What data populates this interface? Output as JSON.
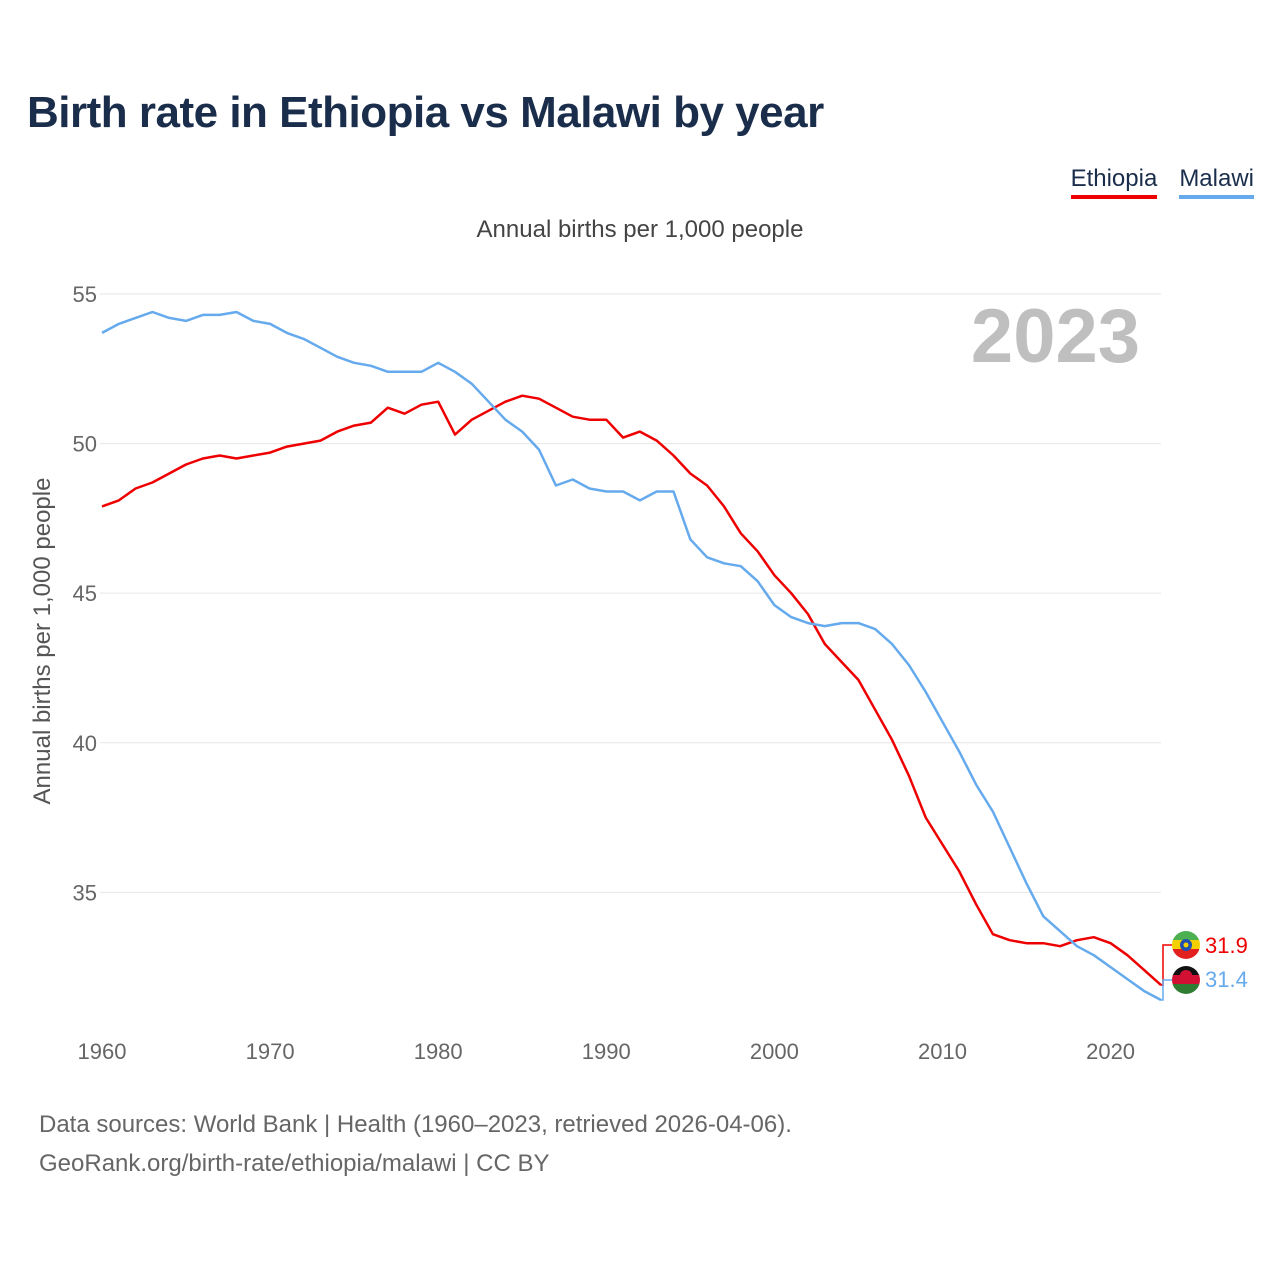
{
  "title": "Birth rate in Ethiopia vs Malawi by year",
  "subtitle": "Annual births per 1,000 people",
  "legend": [
    {
      "label": "Ethiopia",
      "color": "#ee0000"
    },
    {
      "label": "Malawi",
      "color": "#66aaee"
    }
  ],
  "year_display": "2023",
  "source_line1": "Data sources: World Bank | Health (1960–2023, retrieved 2026-04-06).",
  "source_line2": "GeoRank.org/birth-rate/ethiopia/malawi | CC BY",
  "end_labels": {
    "ethiopia": "31.9",
    "malawi": "31.4"
  },
  "chart_data": {
    "type": "line",
    "title": "Birth rate in Ethiopia vs Malawi by year",
    "subtitle": "Annual births per 1,000 people",
    "xlabel": "",
    "ylabel": "Annual births per 1,000 people",
    "xlim": [
      1960,
      2023
    ],
    "ylim": [
      31,
      55
    ],
    "x_ticks": [
      "1960",
      "1970",
      "1980",
      "1990",
      "2000",
      "2010",
      "2020"
    ],
    "y_ticks": [
      "35",
      "40",
      "45",
      "50",
      "55"
    ],
    "x": [
      1960,
      1961,
      1962,
      1963,
      1964,
      1965,
      1966,
      1967,
      1968,
      1969,
      1970,
      1971,
      1972,
      1973,
      1974,
      1975,
      1976,
      1977,
      1978,
      1979,
      1980,
      1981,
      1982,
      1983,
      1984,
      1985,
      1986,
      1987,
      1988,
      1989,
      1990,
      1991,
      1992,
      1993,
      1994,
      1995,
      1996,
      1997,
      1998,
      1999,
      2000,
      2001,
      2002,
      2003,
      2004,
      2005,
      2006,
      2007,
      2008,
      2009,
      2010,
      2011,
      2012,
      2013,
      2014,
      2015,
      2016,
      2017,
      2018,
      2019,
      2020,
      2021,
      2022,
      2023
    ],
    "series": [
      {
        "name": "Ethiopia",
        "color": "#ee0000",
        "values": [
          47.9,
          48.1,
          48.5,
          48.7,
          49.0,
          49.3,
          49.5,
          49.6,
          49.5,
          49.6,
          49.7,
          49.9,
          50.0,
          50.1,
          50.4,
          50.6,
          50.7,
          51.2,
          51.0,
          51.3,
          51.4,
          50.3,
          50.8,
          51.1,
          51.4,
          51.6,
          51.5,
          51.2,
          50.9,
          50.8,
          50.8,
          50.2,
          50.4,
          50.1,
          49.6,
          49.0,
          48.6,
          47.9,
          47.0,
          46.4,
          45.6,
          45.0,
          44.3,
          43.3,
          42.7,
          42.1,
          41.1,
          40.1,
          38.9,
          37.5,
          36.6,
          35.7,
          34.6,
          33.6,
          33.4,
          33.3,
          33.3,
          33.2,
          33.4,
          33.5,
          33.3,
          32.9,
          32.4,
          31.9
        ]
      },
      {
        "name": "Malawi",
        "color": "#66aaee",
        "values": [
          53.7,
          54.0,
          54.2,
          54.4,
          54.2,
          54.1,
          54.3,
          54.3,
          54.4,
          54.1,
          54.0,
          53.7,
          53.5,
          53.2,
          52.9,
          52.7,
          52.6,
          52.4,
          52.4,
          52.4,
          52.7,
          52.4,
          52.0,
          51.4,
          50.8,
          50.4,
          49.8,
          48.6,
          48.8,
          48.5,
          48.4,
          48.4,
          48.1,
          48.4,
          48.4,
          46.8,
          46.2,
          46.0,
          45.9,
          45.4,
          44.6,
          44.2,
          44.0,
          43.9,
          44.0,
          44.0,
          43.8,
          43.3,
          42.6,
          41.7,
          40.7,
          39.7,
          38.6,
          37.7,
          36.5,
          35.3,
          34.2,
          33.7,
          33.2,
          32.9,
          32.5,
          32.1,
          31.7,
          31.4
        ]
      }
    ],
    "grid": true,
    "legend_position": "top-right"
  }
}
